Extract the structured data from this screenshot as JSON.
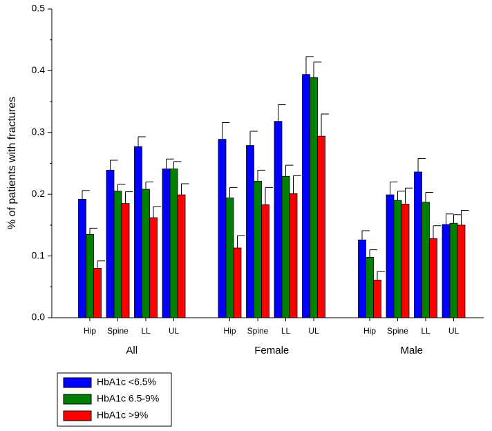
{
  "chart_data": {
    "type": "bar",
    "y_label": "% of patients with fractures",
    "groups": [
      "All",
      "Female",
      "Male"
    ],
    "categories": [
      "Hip",
      "Spine",
      "LL",
      "UL",
      "Hip",
      "Spine",
      "LL",
      "UL",
      "Hip",
      "Spine",
      "LL",
      "UL"
    ],
    "series": [
      {
        "name": "HbA1c <6.5%",
        "color": "#0000ff",
        "values": [
          0.192,
          0.239,
          0.277,
          0.241,
          0.289,
          0.279,
          0.318,
          0.394,
          0.126,
          0.199,
          0.236,
          0.151
        ],
        "errors": [
          0.014,
          0.016,
          0.016,
          0.016,
          0.027,
          0.023,
          0.027,
          0.029,
          0.015,
          0.021,
          0.022,
          0.017
        ]
      },
      {
        "name": "HbA1c 6.5-9%",
        "color": "#008000",
        "values": [
          0.135,
          0.205,
          0.208,
          0.241,
          0.194,
          0.221,
          0.229,
          0.389,
          0.098,
          0.19,
          0.187,
          0.153
        ],
        "errors": [
          0.01,
          0.011,
          0.012,
          0.012,
          0.017,
          0.018,
          0.018,
          0.025,
          0.012,
          0.015,
          0.016,
          0.014
        ]
      },
      {
        "name": "HbA1c >9%",
        "color": "#ff0000",
        "values": [
          0.08,
          0.185,
          0.162,
          0.199,
          0.113,
          0.183,
          0.201,
          0.294,
          0.061,
          0.184,
          0.128,
          0.15
        ],
        "errors": [
          0.012,
          0.019,
          0.018,
          0.018,
          0.02,
          0.028,
          0.029,
          0.036,
          0.014,
          0.026,
          0.021,
          0.024
        ]
      }
    ],
    "ylim": [
      0,
      0.5
    ],
    "yticks": [
      {
        "value": 0,
        "label": "0.0"
      },
      0.1,
      0.2,
      0.3,
      0.4,
      0.5
    ]
  }
}
